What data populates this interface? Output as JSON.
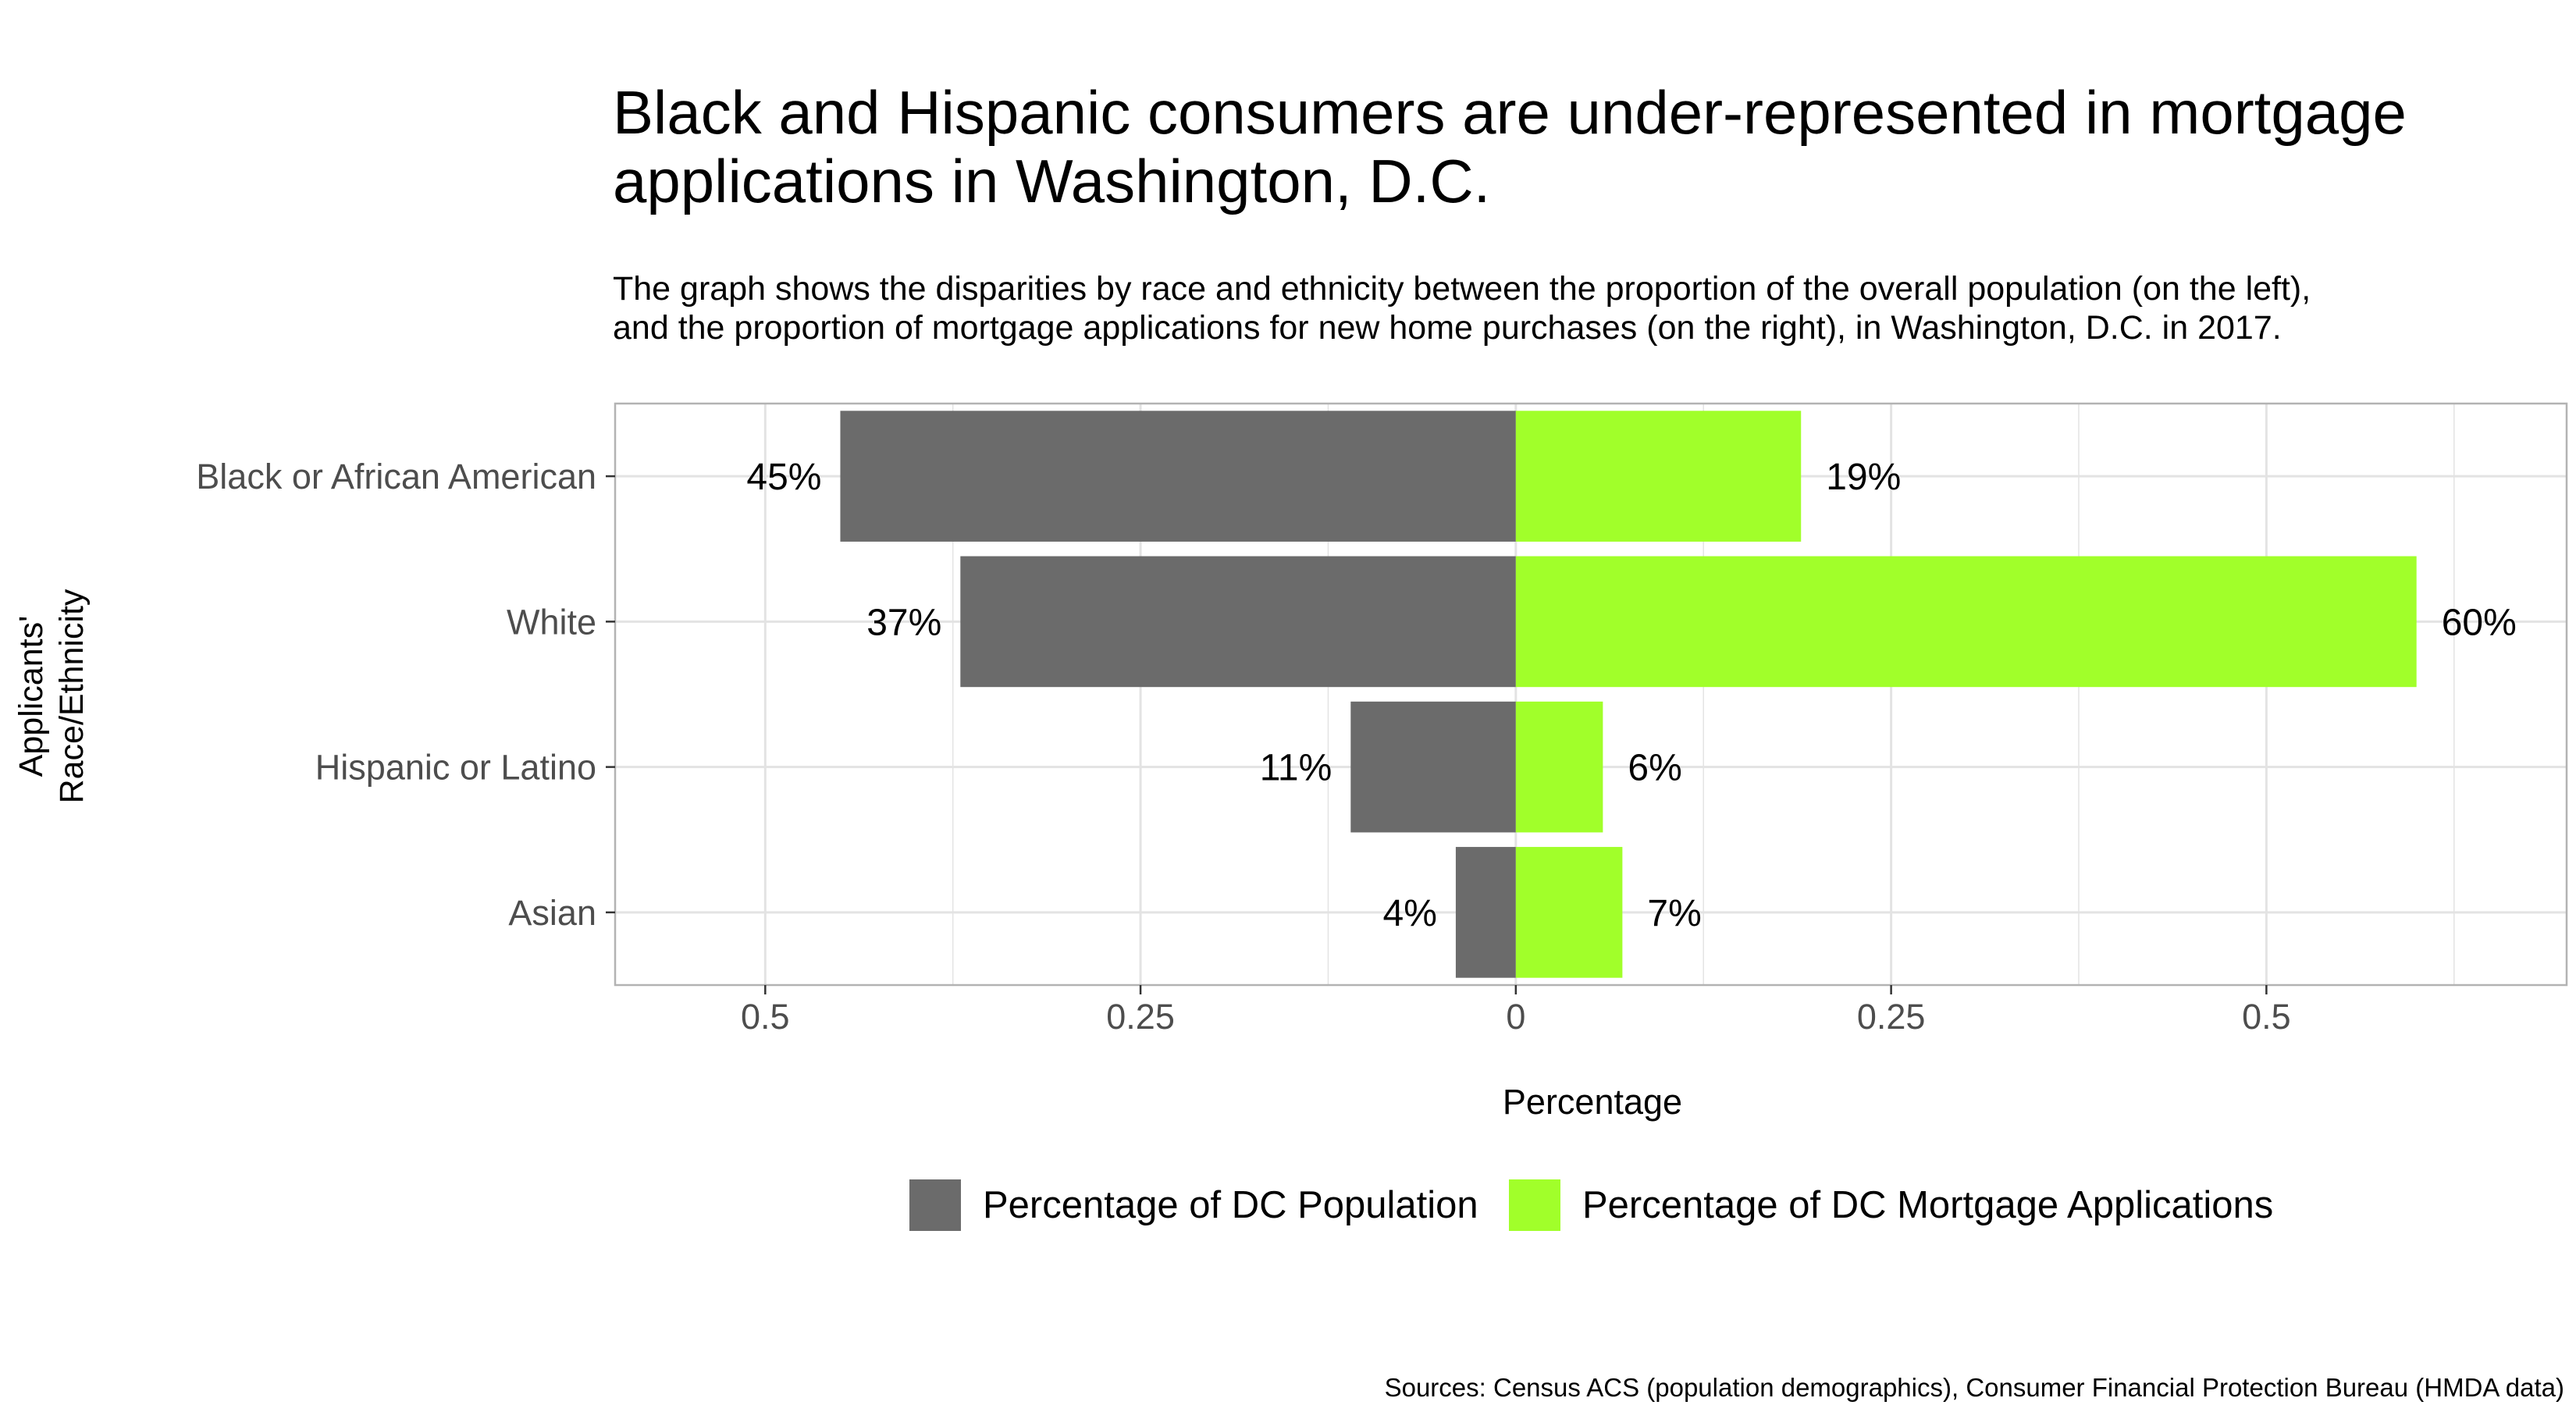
{
  "title_lines": [
    "Black and Hispanic consumers are under-represented in mortgage",
    "applications in Washington, D.C."
  ],
  "subtitle_lines": [
    "The graph shows the disparities by race and ethnicity between the proportion of the overall population (on the left),",
    "and the proportion of mortgage applications for new home purchases (on the right), in Washington, D.C. in 2017."
  ],
  "caption": "Sources: Census ACS (population demographics), Consumer Financial Protection Bureau (HMDA data)",
  "chart_data": {
    "type": "bar",
    "orientation": "horizontal-diverging",
    "categories": [
      "Black or African American",
      "White",
      "Hispanic or Latino",
      "Asian"
    ],
    "series": [
      {
        "name": "Percentage of DC Population",
        "side": "left",
        "color": "#6b6b6b",
        "values": [
          0.45,
          0.37,
          0.11,
          0.04
        ],
        "labels": [
          "45%",
          "37%",
          "11%",
          "4%"
        ]
      },
      {
        "name": "Percentage of DC Mortgage Applications",
        "side": "right",
        "color": "#a1ff2a",
        "values": [
          0.19,
          0.6,
          0.058,
          0.071
        ],
        "labels": [
          "19%",
          "60%",
          "6%",
          "7%"
        ]
      }
    ],
    "xlabel": "Percentage",
    "ylabel_lines": [
      "Applicants'",
      "Race/Ethnicity"
    ],
    "x_ticks": [
      {
        "value": -0.5,
        "label": "0.5"
      },
      {
        "value": -0.25,
        "label": "0.25"
      },
      {
        "value": 0,
        "label": "0"
      },
      {
        "value": 0.25,
        "label": "0.25"
      },
      {
        "value": 0.5,
        "label": "0.5"
      }
    ],
    "xlim": [
      -0.6,
      0.7
    ],
    "grid": true,
    "legend_position": "bottom",
    "panel_border_color": "#b3b3b3",
    "grid_color": "#e3e3e3"
  }
}
